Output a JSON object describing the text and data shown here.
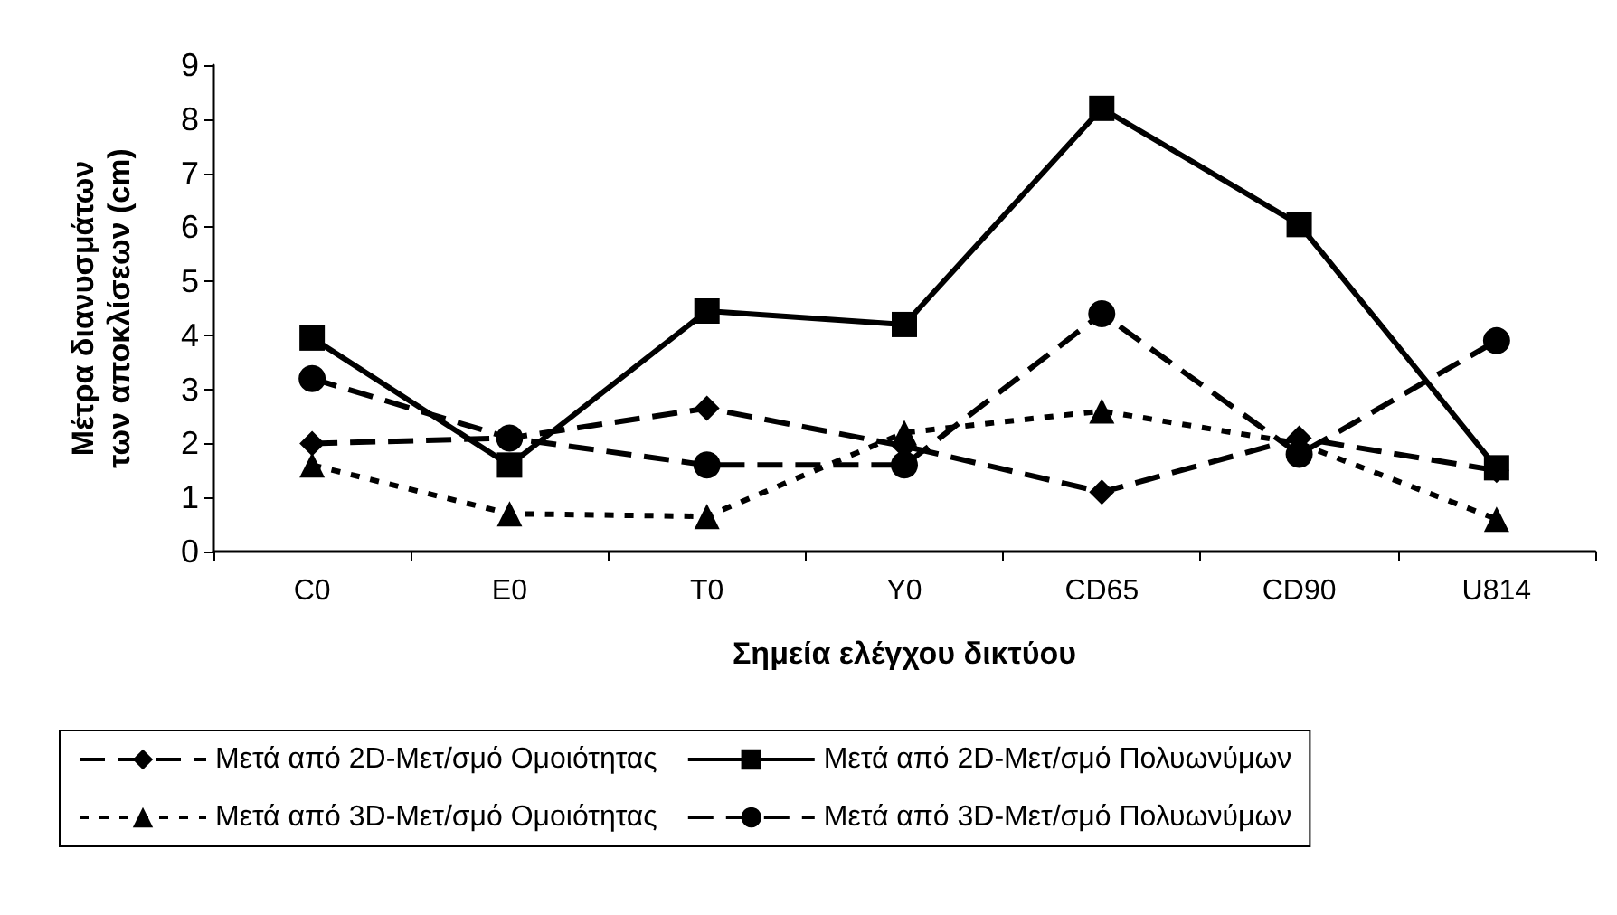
{
  "chart_data": {
    "type": "line",
    "xlabel": "Σημεία ελέγχου δικτύου",
    "ylabel": "Μέτρα διανυσμάτων των αποκλίσεων (cm)",
    "categories": [
      "C0",
      "E0",
      "T0",
      "Y0",
      "CD65",
      "CD90",
      "U814"
    ],
    "ylim": [
      0,
      9
    ],
    "yticks": [
      0,
      1,
      2,
      3,
      4,
      5,
      6,
      7,
      8,
      9
    ],
    "grid": false,
    "legend": "bottom",
    "series": [
      {
        "name": "Μετά από 2D-Μετ/σμό Ομοιότητας",
        "color": "#000000",
        "marker": "diamond",
        "line_style": "dashed",
        "values": [
          2.0,
          2.1,
          2.65,
          1.95,
          1.1,
          2.1,
          1.5
        ]
      },
      {
        "name": "Μετά από 2D-Μετ/σμό Πολυωνύμων",
        "color": "#000000",
        "marker": "square",
        "line_style": "solid",
        "values": [
          3.95,
          1.6,
          4.45,
          4.2,
          8.2,
          6.05,
          1.55
        ]
      },
      {
        "name": "Μετά από 3D-Μετ/σμό Ομοιότητας",
        "color": "#000000",
        "marker": "triangle",
        "line_style": "dotted",
        "values": [
          1.6,
          0.7,
          0.65,
          2.2,
          2.6,
          2.0,
          0.6
        ]
      },
      {
        "name": "Μετά από 3D-Μετ/σμό Πολυωνύμων",
        "color": "#000000",
        "marker": "circle",
        "line_style": "dashed",
        "values": [
          3.2,
          2.1,
          1.6,
          1.6,
          4.4,
          1.8,
          3.9
        ]
      }
    ]
  }
}
